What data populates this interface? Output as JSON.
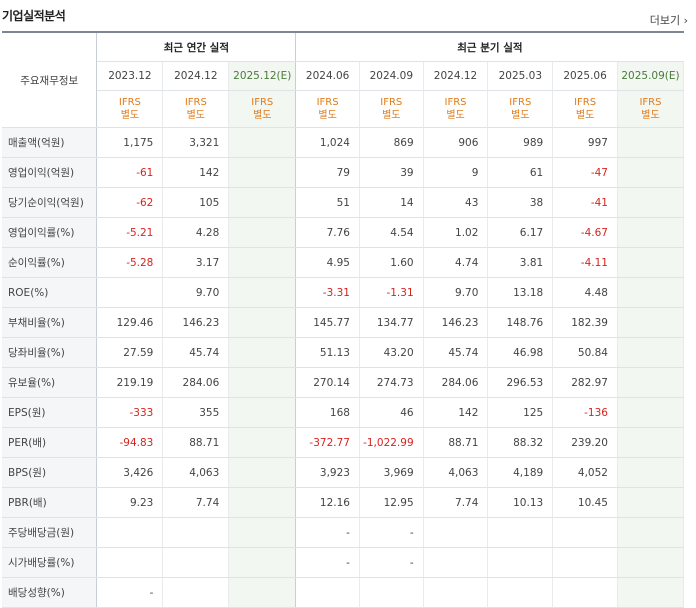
{
  "header": {
    "title": "기업실적분석",
    "more_label": "더보기"
  },
  "table": {
    "corner_label": "주요재무정보",
    "annual_group": "최근 연간 실적",
    "quarter_group": "최근 분기 실적",
    "periods": [
      "2023.12",
      "2024.12",
      "2025.12(E)",
      "2024.06",
      "2024.09",
      "2024.12",
      "2025.03",
      "2025.06",
      "2025.09(E)"
    ],
    "ifrs": [
      "IFRS 별도",
      "IFRS 별도",
      "IFRS 별도",
      "IFRS 별도",
      "IFRS 별도",
      "IFRS 별도",
      "IFRS 별도",
      "IFRS 별도",
      "IFRS 별도"
    ],
    "rows": [
      {
        "label": "매출액(억원)",
        "values": [
          "1,175",
          "3,321",
          "",
          "1,024",
          "869",
          "906",
          "989",
          "997",
          ""
        ]
      },
      {
        "label": "영업이익(억원)",
        "values": [
          "-61",
          "142",
          "",
          "79",
          "39",
          "9",
          "61",
          "-47",
          ""
        ]
      },
      {
        "label": "당기순이익(억원)",
        "values": [
          "-62",
          "105",
          "",
          "51",
          "14",
          "43",
          "38",
          "-41",
          ""
        ]
      },
      {
        "label": "영업이익률(%)",
        "values": [
          "-5.21",
          "4.28",
          "",
          "7.76",
          "4.54",
          "1.02",
          "6.17",
          "-4.67",
          ""
        ]
      },
      {
        "label": "순이익률(%)",
        "values": [
          "-5.28",
          "3.17",
          "",
          "4.95",
          "1.60",
          "4.74",
          "3.81",
          "-4.11",
          ""
        ]
      },
      {
        "label": "ROE(%)",
        "values": [
          "",
          "9.70",
          "",
          "-3.31",
          "-1.31",
          "9.70",
          "13.18",
          "4.48",
          ""
        ]
      },
      {
        "label": "부채비율(%)",
        "values": [
          "129.46",
          "146.23",
          "",
          "145.77",
          "134.77",
          "146.23",
          "148.76",
          "182.39",
          ""
        ]
      },
      {
        "label": "당좌비율(%)",
        "values": [
          "27.59",
          "45.74",
          "",
          "51.13",
          "43.20",
          "45.74",
          "46.98",
          "50.84",
          ""
        ]
      },
      {
        "label": "유보율(%)",
        "values": [
          "219.19",
          "284.06",
          "",
          "270.14",
          "274.73",
          "284.06",
          "296.53",
          "282.97",
          ""
        ]
      },
      {
        "label": "EPS(원)",
        "values": [
          "-333",
          "355",
          "",
          "168",
          "46",
          "142",
          "125",
          "-136",
          ""
        ]
      },
      {
        "label": "PER(배)",
        "values": [
          "-94.83",
          "88.71",
          "",
          "-372.77",
          "-1,022.99",
          "88.71",
          "88.32",
          "239.20",
          ""
        ]
      },
      {
        "label": "BPS(원)",
        "values": [
          "3,426",
          "4,063",
          "",
          "3,923",
          "3,969",
          "4,063",
          "4,189",
          "4,052",
          ""
        ]
      },
      {
        "label": "PBR(배)",
        "values": [
          "9.23",
          "7.74",
          "",
          "12.16",
          "12.95",
          "7.74",
          "10.13",
          "10.45",
          ""
        ]
      },
      {
        "label": "주당배당금(원)",
        "values": [
          "",
          "",
          "",
          "-",
          "-",
          "",
          "",
          "",
          ""
        ]
      },
      {
        "label": "시가배당률(%)",
        "values": [
          "",
          "",
          "",
          "-",
          "-",
          "",
          "",
          "",
          ""
        ]
      },
      {
        "label": "배당성향(%)",
        "values": [
          "-",
          "",
          "",
          "",
          "",
          "",
          "",
          "",
          ""
        ]
      }
    ]
  },
  "colors": {
    "negative": "#d8231f",
    "ifrs": "#e07b1a",
    "estimate_bg": "#f3f7f2"
  }
}
